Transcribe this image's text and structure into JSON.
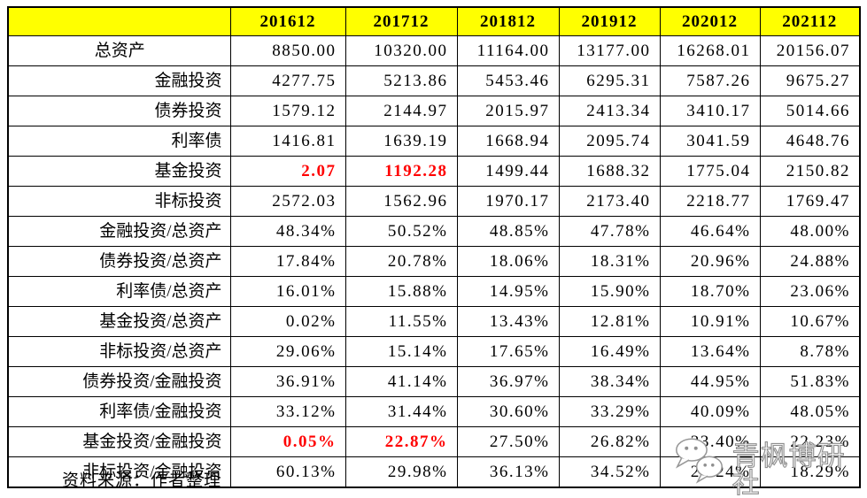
{
  "chart_data": {
    "type": "table",
    "title": "",
    "corner_label": "",
    "categories": [
      "201612",
      "201712",
      "201812",
      "201912",
      "202012",
      "202112"
    ],
    "series": [
      {
        "name": "总资产",
        "label_align": "center",
        "values": [
          "8850.00",
          "10320.00",
          "11164.00",
          "13177.00",
          "16268.01",
          "20156.07"
        ],
        "red_indices": []
      },
      {
        "name": "金融投资",
        "label_align": "right",
        "values": [
          "4277.75",
          "5213.86",
          "5453.46",
          "6295.31",
          "7587.26",
          "9675.27"
        ],
        "red_indices": []
      },
      {
        "name": "债券投资",
        "label_align": "right",
        "values": [
          "1579.12",
          "2144.97",
          "2015.97",
          "2413.34",
          "3410.17",
          "5014.66"
        ],
        "red_indices": []
      },
      {
        "name": "利率债",
        "label_align": "right",
        "values": [
          "1416.81",
          "1639.19",
          "1668.94",
          "2095.74",
          "3041.59",
          "4648.76"
        ],
        "red_indices": []
      },
      {
        "name": "基金投资",
        "label_align": "right",
        "values": [
          "2.07",
          "1192.28",
          "1499.44",
          "1688.32",
          "1775.04",
          "2150.82"
        ],
        "red_indices": [
          0,
          1
        ]
      },
      {
        "name": "非标投资",
        "label_align": "right",
        "values": [
          "2572.03",
          "1562.96",
          "1970.17",
          "2173.40",
          "2218.77",
          "1769.47"
        ],
        "red_indices": []
      },
      {
        "name": "金融投资/总资产",
        "label_align": "right",
        "values": [
          "48.34%",
          "50.52%",
          "48.85%",
          "47.78%",
          "46.64%",
          "48.00%"
        ],
        "red_indices": []
      },
      {
        "name": "债券投资/总资产",
        "label_align": "right",
        "values": [
          "17.84%",
          "20.78%",
          "18.06%",
          "18.31%",
          "20.96%",
          "24.88%"
        ],
        "red_indices": []
      },
      {
        "name": "利率债/总资产",
        "label_align": "right",
        "values": [
          "16.01%",
          "15.88%",
          "14.95%",
          "15.90%",
          "18.70%",
          "23.06%"
        ],
        "red_indices": []
      },
      {
        "name": "基金投资/总资产",
        "label_align": "right",
        "values": [
          "0.02%",
          "11.55%",
          "13.43%",
          "12.81%",
          "10.91%",
          "10.67%"
        ],
        "red_indices": []
      },
      {
        "name": "非标投资/总资产",
        "label_align": "right",
        "values": [
          "29.06%",
          "15.14%",
          "17.65%",
          "16.49%",
          "13.64%",
          "8.78%"
        ],
        "red_indices": []
      },
      {
        "name": "债券投资/金融投资",
        "label_align": "right",
        "values": [
          "36.91%",
          "41.14%",
          "36.97%",
          "38.34%",
          "44.95%",
          "51.83%"
        ],
        "red_indices": []
      },
      {
        "name": "利率债/金融投资",
        "label_align": "right",
        "values": [
          "33.12%",
          "31.44%",
          "30.60%",
          "33.29%",
          "40.09%",
          "48.05%"
        ],
        "red_indices": []
      },
      {
        "name": "基金投资/金融投资",
        "label_align": "right",
        "values": [
          "0.05%",
          "22.87%",
          "27.50%",
          "26.82%",
          "23.40%",
          "22.23%"
        ],
        "red_indices": [
          0,
          1
        ]
      },
      {
        "name": "非标投资/金融投资",
        "label_align": "right",
        "values": [
          "60.13%",
          "29.98%",
          "36.13%",
          "34.52%",
          "29.24%",
          "18.29%"
        ],
        "red_indices": []
      }
    ],
    "legend_position": "none",
    "grid": "full-borders"
  },
  "footer": {
    "source_note": "资料来源：作者整理"
  },
  "watermark": {
    "text": "青枫博研社",
    "icon": "wechat-chat-bubbles-icon"
  },
  "colors": {
    "header_bg": "#FFFF00",
    "text": "#000000",
    "highlight_red": "#FF0000",
    "border": "#000000",
    "watermark_gray": "#8F8F8F"
  }
}
